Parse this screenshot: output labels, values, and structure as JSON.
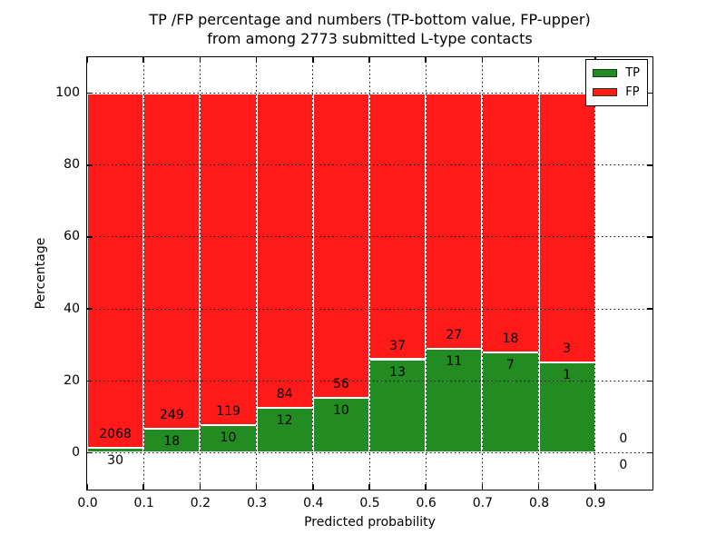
{
  "chart_data": {
    "type": "bar",
    "stacked": true,
    "title_lines": [
      "TP /FP percentage and numbers (TP-bottom value, FP-upper)",
      "from among 2773 submitted L-type contacts"
    ],
    "xlabel": "Predicted probability",
    "ylabel": "Percentage",
    "xlim": [
      0.0,
      1.0
    ],
    "ylim": [
      -10,
      110
    ],
    "xticks": [
      "0.0",
      "0.1",
      "0.2",
      "0.3",
      "0.4",
      "0.5",
      "0.6",
      "0.7",
      "0.8",
      "0.9"
    ],
    "yticks": [
      0,
      20,
      40,
      60,
      80,
      100
    ],
    "grid": "dotted",
    "legend": [
      {
        "label": "TP",
        "color": "#228b22"
      },
      {
        "label": "FP",
        "color": "#ff1a1a"
      }
    ],
    "colors": {
      "tp": "#228b22",
      "fp": "#ff1a1a"
    },
    "bins": [
      {
        "range": [
          0.0,
          0.1
        ],
        "tp": 30,
        "fp": 2068,
        "tp_pct": 1.43
      },
      {
        "range": [
          0.1,
          0.2
        ],
        "tp": 18,
        "fp": 249,
        "tp_pct": 6.74
      },
      {
        "range": [
          0.2,
          0.3
        ],
        "tp": 10,
        "fp": 119,
        "tp_pct": 7.75
      },
      {
        "range": [
          0.3,
          0.4
        ],
        "tp": 12,
        "fp": 84,
        "tp_pct": 12.5
      },
      {
        "range": [
          0.4,
          0.5
        ],
        "tp": 10,
        "fp": 56,
        "tp_pct": 15.15
      },
      {
        "range": [
          0.5,
          0.6
        ],
        "tp": 13,
        "fp": 37,
        "tp_pct": 26.0
      },
      {
        "range": [
          0.6,
          0.7
        ],
        "tp": 11,
        "fp": 27,
        "tp_pct": 28.95
      },
      {
        "range": [
          0.7,
          0.8
        ],
        "tp": 7,
        "fp": 18,
        "tp_pct": 28.0
      },
      {
        "range": [
          0.8,
          0.9
        ],
        "tp": 1,
        "fp": 3,
        "tp_pct": 25.0
      },
      {
        "range": [
          0.9,
          1.0
        ],
        "tp": 0,
        "fp": 0,
        "tp_pct": 0.0
      }
    ]
  }
}
